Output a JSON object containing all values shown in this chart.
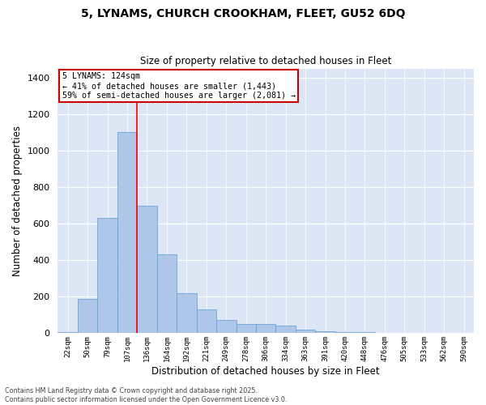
{
  "title_line1": "5, LYNAMS, CHURCH CROOKHAM, FLEET, GU52 6DQ",
  "title_line2": "Size of property relative to detached houses in Fleet",
  "xlabel": "Distribution of detached houses by size in Fleet",
  "ylabel": "Number of detached properties",
  "categories": [
    "22sqm",
    "50sqm",
    "79sqm",
    "107sqm",
    "136sqm",
    "164sqm",
    "192sqm",
    "221sqm",
    "249sqm",
    "278sqm",
    "306sqm",
    "334sqm",
    "363sqm",
    "391sqm",
    "420sqm",
    "448sqm",
    "476sqm",
    "505sqm",
    "533sqm",
    "562sqm",
    "590sqm"
  ],
  "values": [
    5,
    190,
    630,
    1100,
    700,
    430,
    220,
    130,
    75,
    50,
    50,
    40,
    20,
    10,
    5,
    5,
    2,
    1,
    0,
    0,
    0
  ],
  "bar_color": "#aec6e8",
  "bar_edge_color": "#5b9bd5",
  "background_color": "#dce6f5",
  "grid_color": "#ffffff",
  "redline_index": 3,
  "annotation_text": "5 LYNAMS: 124sqm\n← 41% of detached houses are smaller (1,443)\n59% of semi-detached houses are larger (2,081) →",
  "annotation_box_color": "#ffffff",
  "annotation_box_edge": "#cc0000",
  "footer_text": "Contains HM Land Registry data © Crown copyright and database right 2025.\nContains public sector information licensed under the Open Government Licence v3.0.",
  "ylim": [
    0,
    1450
  ],
  "yticks": [
    0,
    200,
    400,
    600,
    800,
    1000,
    1200,
    1400
  ],
  "fig_bg": "#ffffff"
}
